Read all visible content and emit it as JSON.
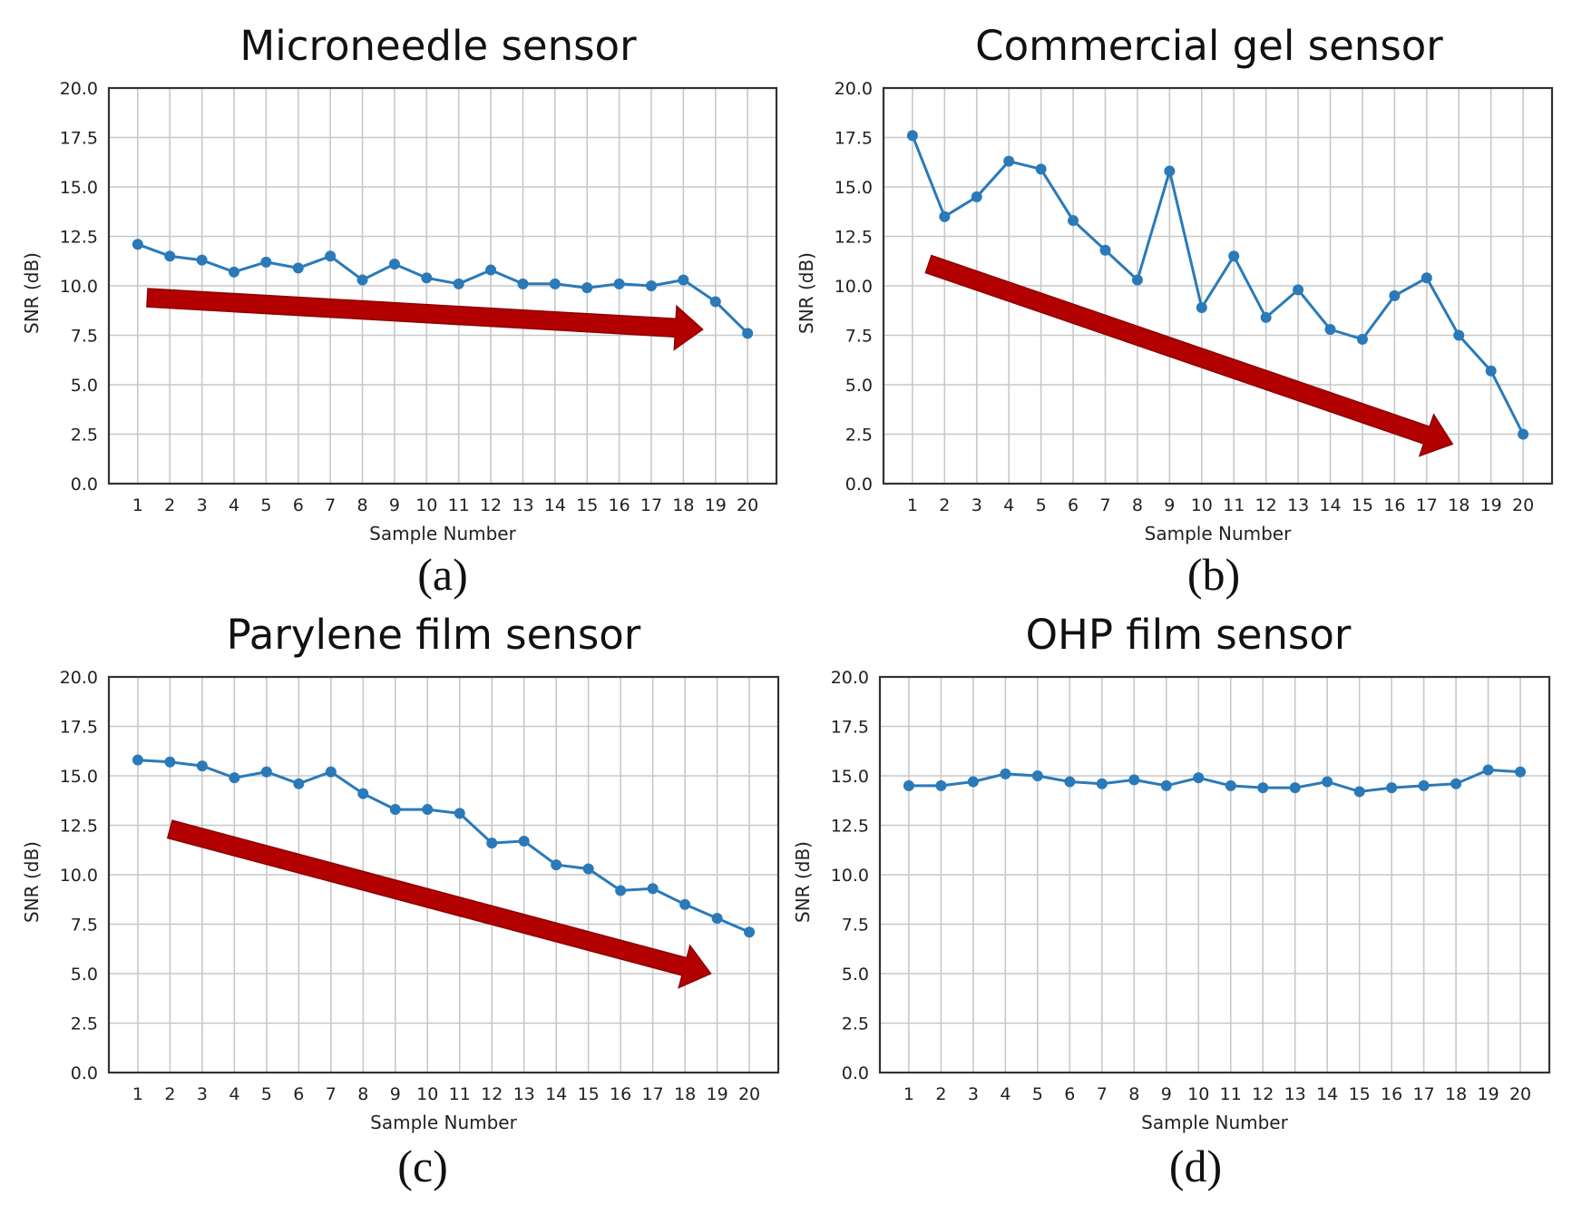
{
  "chart_data": [
    {
      "type": "line",
      "panel": "(a)",
      "title": "Microneedle sensor",
      "xlabel": "Sample Number",
      "ylabel": "SNR (dB)",
      "ylim": [
        0,
        20
      ],
      "yticks": [
        "0.0",
        "2.5",
        "5.0",
        "7.5",
        "10.0",
        "12.5",
        "15.0",
        "17.5",
        "20.0"
      ],
      "x": [
        1,
        2,
        3,
        4,
        5,
        6,
        7,
        8,
        9,
        10,
        11,
        12,
        13,
        14,
        15,
        16,
        17,
        18,
        19,
        20
      ],
      "values": [
        12.1,
        11.5,
        11.3,
        10.7,
        11.2,
        10.9,
        11.5,
        10.3,
        11.1,
        10.4,
        10.1,
        10.8,
        10.1,
        10.1,
        9.9,
        10.1,
        10.0,
        10.3,
        9.2,
        7.6
      ],
      "grid": true,
      "color": "#2a7ab9",
      "trend_arrow": {
        "from": [
          1.3,
          9.4
        ],
        "to": [
          18.6,
          7.8
        ],
        "color": "#b30000"
      }
    },
    {
      "type": "line",
      "panel": "(b)",
      "title": "Commercial gel sensor",
      "xlabel": "Sample Number",
      "ylabel": "SNR (dB)",
      "ylim": [
        0,
        20
      ],
      "yticks": [
        "0.0",
        "2.5",
        "5.0",
        "7.5",
        "10.0",
        "12.5",
        "15.0",
        "17.5",
        "20.0"
      ],
      "x": [
        1,
        2,
        3,
        4,
        5,
        6,
        7,
        8,
        9,
        10,
        11,
        12,
        13,
        14,
        15,
        16,
        17,
        18,
        19,
        20
      ],
      "values": [
        17.6,
        13.5,
        14.5,
        16.3,
        15.9,
        13.3,
        11.8,
        10.3,
        15.8,
        8.9,
        11.5,
        8.4,
        9.8,
        7.8,
        7.3,
        9.5,
        10.4,
        7.5,
        5.7,
        2.5
      ],
      "grid": true,
      "color": "#2a7ab9",
      "trend_arrow": {
        "from": [
          1.5,
          11.1
        ],
        "to": [
          17.8,
          2.0
        ],
        "color": "#b30000"
      }
    },
    {
      "type": "line",
      "panel": "(c)",
      "title": "Parylene film sensor",
      "xlabel": "Sample Number",
      "ylabel": "SNR (dB)",
      "ylim": [
        0,
        20
      ],
      "yticks": [
        "0.0",
        "2.5",
        "5.0",
        "7.5",
        "10.0",
        "12.5",
        "15.0",
        "17.5",
        "20.0"
      ],
      "x": [
        1,
        2,
        3,
        4,
        5,
        6,
        7,
        8,
        9,
        10,
        11,
        12,
        13,
        14,
        15,
        16,
        17,
        18,
        19,
        20
      ],
      "values": [
        15.8,
        15.7,
        15.5,
        14.9,
        15.2,
        14.6,
        15.2,
        14.1,
        13.3,
        13.3,
        13.1,
        11.6,
        11.7,
        10.5,
        10.3,
        9.2,
        9.3,
        8.5,
        7.8,
        7.1
      ],
      "grid": true,
      "color": "#2a7ab9",
      "trend_arrow": {
        "from": [
          2.0,
          12.3
        ],
        "to": [
          18.8,
          5.0
        ],
        "color": "#b30000"
      }
    },
    {
      "type": "line",
      "panel": "(d)",
      "title": "OHP film sensor",
      "xlabel": "Sample Number",
      "ylabel": "SNR (dB)",
      "ylim": [
        0,
        20
      ],
      "yticks": [
        "0.0",
        "2.5",
        "5.0",
        "7.5",
        "10.0",
        "12.5",
        "15.0",
        "17.5",
        "20.0"
      ],
      "x": [
        1,
        2,
        3,
        4,
        5,
        6,
        7,
        8,
        9,
        10,
        11,
        12,
        13,
        14,
        15,
        16,
        17,
        18,
        19,
        20
      ],
      "values": [
        14.5,
        14.5,
        14.7,
        15.1,
        15.0,
        14.7,
        14.6,
        14.8,
        14.5,
        14.9,
        14.5,
        14.4,
        14.4,
        14.7,
        14.2,
        14.4,
        14.5,
        14.6,
        15.3,
        15.2
      ],
      "grid": true,
      "color": "#2a7ab9"
    }
  ]
}
